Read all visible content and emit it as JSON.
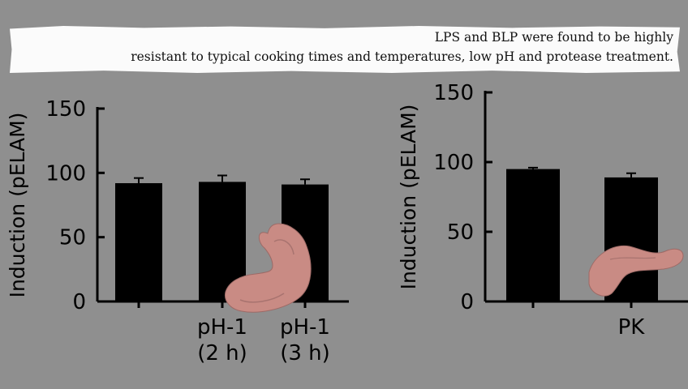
{
  "caption": {
    "line1": "LPS and BLP were found to be highly",
    "line2": "resistant to typical cooking times and temperatures, low pH and protease treatment."
  },
  "colors": {
    "background": "#8f8f8f",
    "bars": "#000000",
    "caption_bg": "#fbfbfb",
    "organ": "#c98b84"
  },
  "icons": {
    "left": "stomach-icon",
    "right": "pancreas-icon"
  },
  "chart_data": [
    {
      "type": "bar",
      "ylabel": "Induction (pELAM)",
      "ylim": [
        0,
        150
      ],
      "yticks": [
        0,
        50,
        100,
        150
      ],
      "categories": [
        "",
        "pH-1\n(2 h)",
        "pH-1\n(3 h)"
      ],
      "values": [
        92,
        93,
        91
      ],
      "errors": [
        4,
        5,
        4
      ],
      "grid": false
    },
    {
      "type": "bar",
      "ylabel": "Induction (pELAM)",
      "ylim": [
        0,
        150
      ],
      "yticks": [
        0,
        50,
        100,
        150
      ],
      "categories": [
        "",
        "PK"
      ],
      "values": [
        95,
        89
      ],
      "errors": [
        1,
        3
      ],
      "grid": false
    }
  ]
}
